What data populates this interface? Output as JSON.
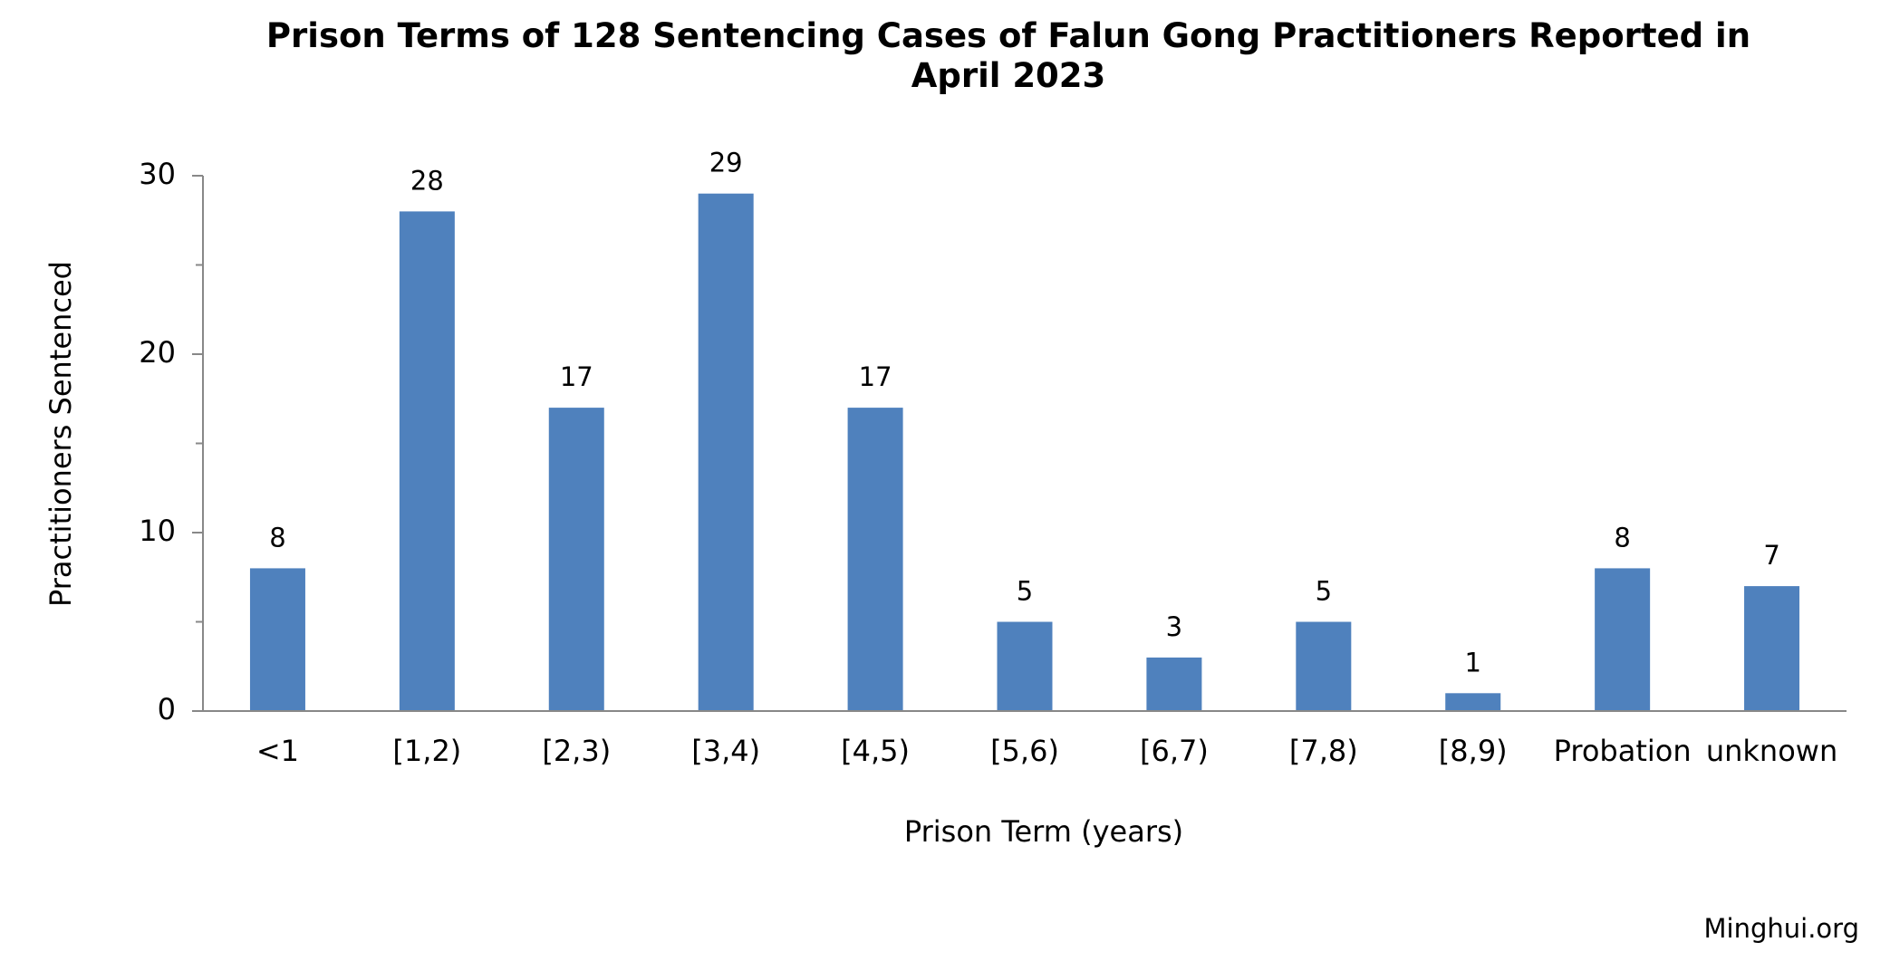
{
  "chart_data": {
    "type": "bar",
    "title": "Prison Terms of 128 Sentencing Cases of Falun Gong Practitioners Reported in April 2023",
    "x_label": "Prison Term (years)",
    "y_label": "Practitioners Sentenced",
    "source": "Minghui.org",
    "categories": [
      "<1",
      "[1,2)",
      "[2,3)",
      "[3,4)",
      "[4,5)",
      "[5,6)",
      "[6,7)",
      "[7,8)",
      "[8,9)",
      "Probation",
      "unknown"
    ],
    "values": [
      8,
      28,
      17,
      29,
      17,
      5,
      3,
      5,
      1,
      8,
      7
    ],
    "color": "#4f81bd",
    "ylim": [
      0,
      30
    ],
    "yticks": [
      0,
      10,
      20,
      30
    ],
    "yminorticks": [
      5,
      15,
      25
    ]
  }
}
